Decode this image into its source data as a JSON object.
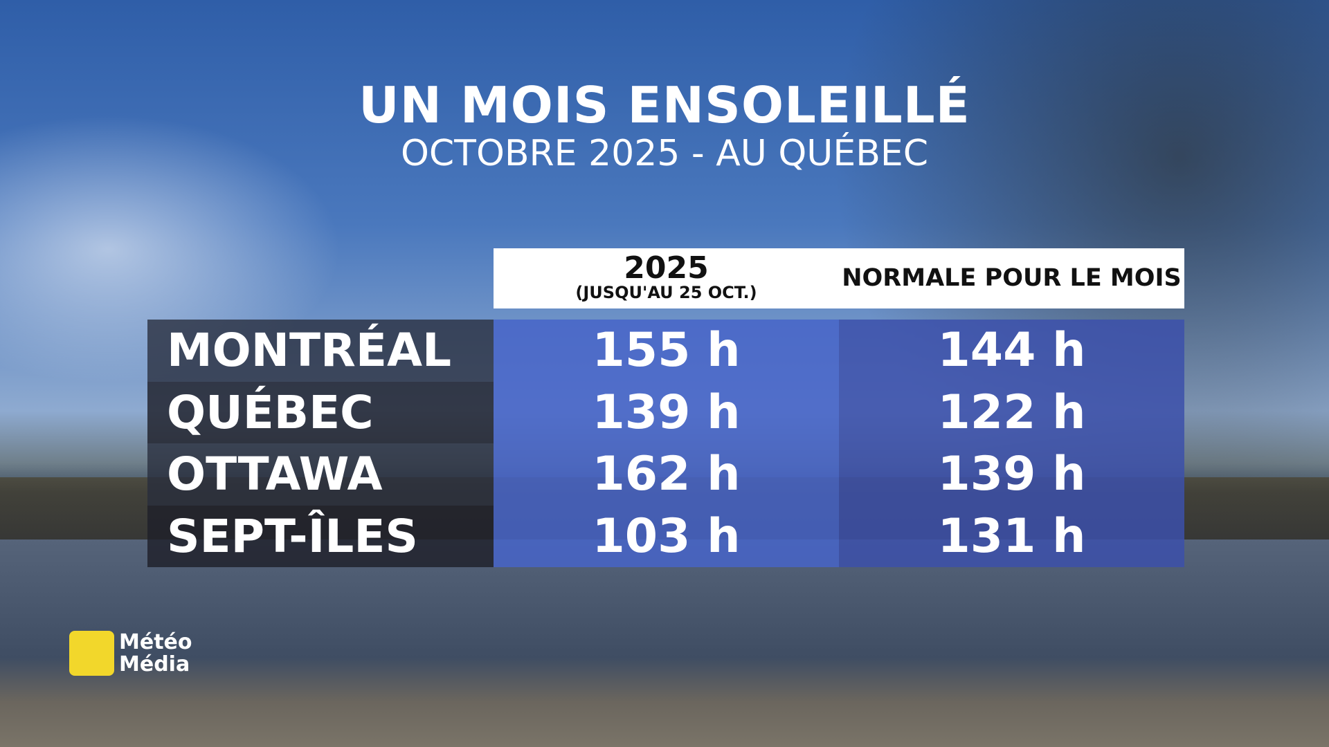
{
  "header": {
    "title": "UN MOIS ENSOLEILLÉ",
    "subtitle": "OCTOBRE 2025 - AU QUÉBEC"
  },
  "table": {
    "columns": [
      {
        "label": "2025",
        "note": "(JUSQU'AU 25 OCT.)"
      },
      {
        "label": "NORMALE POUR LE MOIS"
      }
    ],
    "rows": [
      [
        "MONTRÉAL",
        "155 h",
        "144 h"
      ],
      [
        "QUÉBEC",
        "139 h",
        "122 h"
      ],
      [
        "OTTAWA",
        "162 h",
        "139 h"
      ],
      [
        "SEPT-ÎLES",
        "103 h",
        "131 h"
      ]
    ]
  },
  "logo": {
    "line1": "Météo",
    "line2": "Média"
  }
}
